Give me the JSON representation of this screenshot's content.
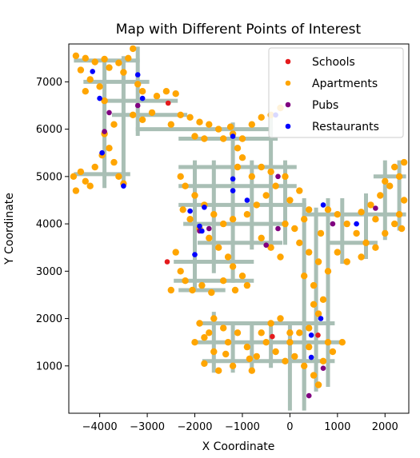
{
  "chart_data": {
    "type": "scatter",
    "title": "Map with Different Points of Interest",
    "xlabel": "X Coordinate",
    "ylabel": "Y Coordinate",
    "xlim": [
      -4650,
      2500
    ],
    "ylim": [
      0,
      7800
    ],
    "xticks": [
      -4000,
      -3000,
      -2000,
      -1000,
      0,
      1000,
      2000
    ],
    "xtick_labels": [
      "−4000",
      "−3000",
      "−2000",
      "−1000",
      "0",
      "1000",
      "2000"
    ],
    "yticks": [
      1000,
      2000,
      3000,
      4000,
      5000,
      6000,
      7000
    ],
    "ytick_labels": [
      "1000",
      "2000",
      "3000",
      "4000",
      "5000",
      "6000",
      "7000"
    ],
    "grid": false,
    "legend_position": "upper right",
    "background_network_color": "#a9bfb5",
    "series": [
      {
        "name": "Schools",
        "color": "#e41a1c",
        "points": [
          [
            -2560,
            6550
          ],
          [
            -2580,
            3200
          ],
          [
            -370,
            1620
          ],
          [
            590,
            1650
          ]
        ]
      },
      {
        "name": "Apartments",
        "color": "#ffa500",
        "points": [
          [
            -4500,
            7550
          ],
          [
            -4300,
            7500
          ],
          [
            -4100,
            7420
          ],
          [
            -3900,
            7480
          ],
          [
            -4400,
            7250
          ],
          [
            -4200,
            7050
          ],
          [
            -4000,
            6900
          ],
          [
            -3800,
            7300
          ],
          [
            -3600,
            7400
          ],
          [
            -3400,
            7500
          ],
          [
            -3300,
            7700
          ],
          [
            -3500,
            7200
          ],
          [
            -4300,
            6800
          ],
          [
            -3900,
            6600
          ],
          [
            -3200,
            6950
          ],
          [
            -3100,
            6800
          ],
          [
            -2800,
            6700
          ],
          [
            -2600,
            6800
          ],
          [
            -2400,
            6750
          ],
          [
            -4550,
            5000
          ],
          [
            -4400,
            5100
          ],
          [
            -4300,
            4900
          ],
          [
            -4200,
            4800
          ],
          [
            -4100,
            5200
          ],
          [
            -4500,
            4700
          ],
          [
            -3950,
            5450
          ],
          [
            -3800,
            5600
          ],
          [
            -3700,
            5300
          ],
          [
            -3600,
            5000
          ],
          [
            -3500,
            4850
          ],
          [
            -3900,
            5900
          ],
          [
            -3700,
            6100
          ],
          [
            -3300,
            6300
          ],
          [
            -3100,
            6200
          ],
          [
            -2900,
            6350
          ],
          [
            -2500,
            6100
          ],
          [
            -2300,
            6300
          ],
          [
            -2100,
            6250
          ],
          [
            -1900,
            6150
          ],
          [
            -1700,
            6100
          ],
          [
            -1500,
            6000
          ],
          [
            -1400,
            5800
          ],
          [
            -1200,
            5900
          ],
          [
            -1000,
            5800
          ],
          [
            -800,
            6100
          ],
          [
            -600,
            6250
          ],
          [
            -400,
            6300
          ],
          [
            -200,
            6450
          ],
          [
            -1800,
            5800
          ],
          [
            -2000,
            5850
          ],
          [
            -1250,
            6050
          ],
          [
            -1100,
            5600
          ],
          [
            -1000,
            5400
          ],
          [
            -1100,
            5200
          ],
          [
            -2300,
            5000
          ],
          [
            -2200,
            4800
          ],
          [
            -2000,
            4600
          ],
          [
            -1800,
            4400
          ],
          [
            -1600,
            4200
          ],
          [
            -1400,
            4000
          ],
          [
            -1200,
            4100
          ],
          [
            -900,
            4200
          ],
          [
            -700,
            4400
          ],
          [
            -500,
            4600
          ],
          [
            -300,
            4800
          ],
          [
            -100,
            5000
          ],
          [
            -2250,
            4300
          ],
          [
            -2100,
            4100
          ],
          [
            -1900,
            3900
          ],
          [
            -1700,
            3700
          ],
          [
            -1500,
            3500
          ],
          [
            -1300,
            3300
          ],
          [
            -1200,
            3100
          ],
          [
            -1000,
            2900
          ],
          [
            -2400,
            3400
          ],
          [
            -2300,
            3000
          ],
          [
            -2200,
            2800
          ],
          [
            -2050,
            2600
          ],
          [
            -1850,
            2700
          ],
          [
            -1650,
            2550
          ],
          [
            -1400,
            2800
          ],
          [
            -1150,
            2600
          ],
          [
            -900,
            2700
          ],
          [
            -2500,
            2600
          ],
          [
            -600,
            3700
          ],
          [
            -400,
            3500
          ],
          [
            -200,
            3300
          ],
          [
            -100,
            4000
          ],
          [
            100,
            3900
          ],
          [
            300,
            4100
          ],
          [
            -800,
            5000
          ],
          [
            -600,
            5200
          ],
          [
            -400,
            5100
          ],
          [
            0,
            4500
          ],
          [
            200,
            4700
          ],
          [
            400,
            4300
          ],
          [
            200,
            3600
          ],
          [
            400,
            3400
          ],
          [
            600,
            3200
          ],
          [
            800,
            3000
          ],
          [
            300,
            2900
          ],
          [
            500,
            2700
          ],
          [
            800,
            4300
          ],
          [
            1000,
            4200
          ],
          [
            1200,
            4000
          ],
          [
            1400,
            3800
          ],
          [
            1600,
            3600
          ],
          [
            1000,
            3400
          ],
          [
            1200,
            3200
          ],
          [
            1500,
            3300
          ],
          [
            1800,
            3500
          ],
          [
            2000,
            3800
          ],
          [
            2200,
            4000
          ],
          [
            2300,
            4200
          ],
          [
            1700,
            4400
          ],
          [
            1900,
            4600
          ],
          [
            2100,
            4800
          ],
          [
            2300,
            5000
          ],
          [
            2400,
            5300
          ],
          [
            2200,
            5200
          ],
          [
            2000,
            4900
          ],
          [
            2400,
            4500
          ],
          [
            2350,
            3900
          ],
          [
            1500,
            4250
          ],
          [
            1800,
            4100
          ],
          [
            650,
            3800
          ],
          [
            -1600,
            2000
          ],
          [
            -1400,
            1800
          ],
          [
            -1800,
            1600
          ],
          [
            -1600,
            1300
          ],
          [
            -1300,
            1500
          ],
          [
            -1100,
            1700
          ],
          [
            -900,
            1400
          ],
          [
            -700,
            1200
          ],
          [
            -500,
            1500
          ],
          [
            -300,
            1300
          ],
          [
            -100,
            1100
          ],
          [
            -1800,
            1050
          ],
          [
            -1500,
            900
          ],
          [
            -1200,
            1000
          ],
          [
            -800,
            900
          ],
          [
            0,
            1500
          ],
          [
            100,
            1200
          ],
          [
            300,
            1000
          ],
          [
            500,
            800
          ],
          [
            700,
            1100
          ],
          [
            900,
            1300
          ],
          [
            1100,
            1500
          ],
          [
            800,
            1500
          ],
          [
            600,
            600
          ],
          [
            400,
            1800
          ],
          [
            600,
            2100
          ],
          [
            700,
            2400
          ],
          [
            500,
            2300
          ],
          [
            400,
            1400
          ],
          [
            200,
            1700
          ],
          [
            -1900,
            1900
          ],
          [
            -2000,
            1500
          ],
          [
            -1700,
            1700
          ],
          [
            -600,
            1700
          ],
          [
            -850,
            1150
          ],
          [
            -1350,
            1250
          ],
          [
            -200,
            2000
          ],
          [
            0,
            1700
          ],
          [
            -400,
            1900
          ]
        ]
      },
      {
        "name": "Pubs",
        "color": "#800080",
        "points": [
          [
            -3800,
            6350
          ],
          [
            -3200,
            6500
          ],
          [
            -3900,
            5950
          ],
          [
            -1700,
            3900
          ],
          [
            -1900,
            3850
          ],
          [
            -250,
            5000
          ],
          [
            -250,
            3900
          ],
          [
            -500,
            3550
          ],
          [
            900,
            4000
          ],
          [
            1800,
            4330
          ],
          [
            700,
            950
          ],
          [
            400,
            370
          ]
        ]
      },
      {
        "name": "Restaurants",
        "color": "#0000ff",
        "points": [
          [
            -4150,
            7220
          ],
          [
            -3200,
            7150
          ],
          [
            -3100,
            6650
          ],
          [
            -4000,
            6650
          ],
          [
            -3950,
            5500
          ],
          [
            -3500,
            4800
          ],
          [
            -2100,
            4270
          ],
          [
            -1800,
            4350
          ],
          [
            -1900,
            3950
          ],
          [
            -1850,
            3850
          ],
          [
            -2000,
            3350
          ],
          [
            -1200,
            5850
          ],
          [
            -1200,
            4950
          ],
          [
            -1200,
            4700
          ],
          [
            -900,
            4500
          ],
          [
            -300,
            6300
          ],
          [
            700,
            4400
          ],
          [
            1400,
            4000
          ],
          [
            650,
            2000
          ],
          [
            450,
            1650
          ],
          [
            450,
            1180
          ]
        ]
      }
    ]
  }
}
